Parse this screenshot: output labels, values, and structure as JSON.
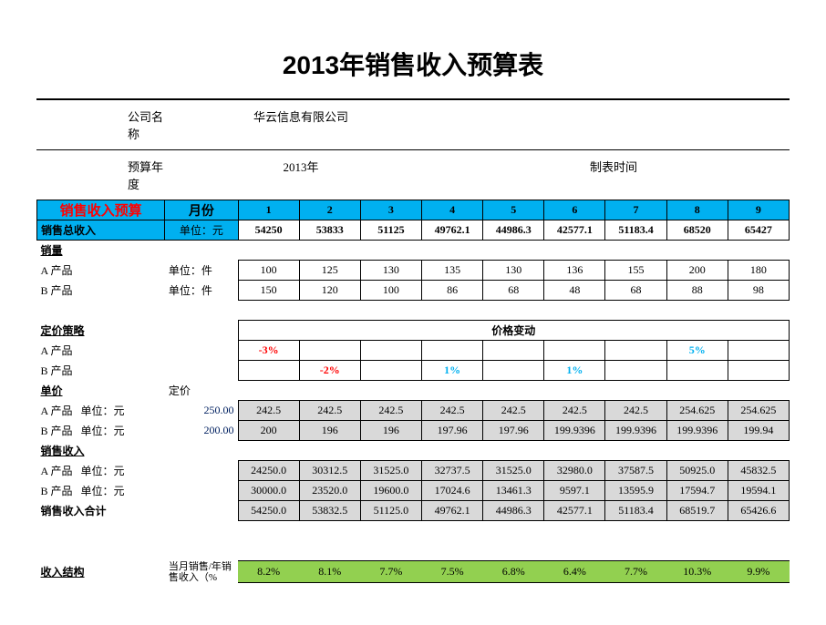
{
  "title": "2013年销售收入预算表",
  "info": {
    "company_label": "公司名称",
    "company_value": "华云信息有限公司",
    "budget_year_label": "预算年度",
    "budget_year_value": "2013年",
    "report_time_label": "制表时间"
  },
  "header": {
    "sales_budget": "销售收入预算",
    "month": "月份",
    "months": [
      "1",
      "2",
      "3",
      "4",
      "5",
      "6",
      "7",
      "8",
      "9"
    ],
    "total_label": "销售总收入",
    "unit_label": "单位：元",
    "totals": [
      "54250",
      "53833",
      "51125",
      "49762.1",
      "44986.3",
      "42577.1",
      "51183.4",
      "68520",
      "65427"
    ]
  },
  "volume": {
    "section": "销量",
    "product_a": "A 产品",
    "product_b": "B 产品",
    "unit_piece": "单位：件",
    "a_values": [
      "100",
      "125",
      "130",
      "135",
      "130",
      "136",
      "155",
      "200",
      "180"
    ],
    "b_values": [
      "150",
      "120",
      "100",
      "86",
      "68",
      "48",
      "68",
      "88",
      "98"
    ]
  },
  "pricing": {
    "section": "定价策略",
    "change_title": "价格变动",
    "product_a": "A 产品",
    "product_b": "B 产品",
    "a_changes": [
      "-3%",
      "",
      "",
      "",
      "",
      "",
      "",
      "5%",
      ""
    ],
    "b_changes": [
      "",
      "-2%",
      "",
      "1%",
      "",
      "1%",
      "",
      "",
      ""
    ]
  },
  "unit_price": {
    "section": "单价",
    "base_label": "定价",
    "product_a": "A 产品",
    "product_b": "B 产品",
    "unit_yuan": "单位：元",
    "a_base": "250.00",
    "b_base": "200.00",
    "a_values": [
      "242.5",
      "242.5",
      "242.5",
      "242.5",
      "242.5",
      "242.5",
      "242.5",
      "254.625",
      "254.625"
    ],
    "b_values": [
      "200",
      "196",
      "196",
      "197.96",
      "197.96",
      "199.9396",
      "199.9396",
      "199.9396",
      "199.94"
    ]
  },
  "revenue": {
    "section": "销售收入",
    "product_a": "A 产品",
    "product_b": "B 产品",
    "unit_yuan": "单位：元",
    "total_label": "销售收入合计",
    "a_values": [
      "24250.0",
      "30312.5",
      "31525.0",
      "32737.5",
      "31525.0",
      "32980.0",
      "37587.5",
      "50925.0",
      "45832.5"
    ],
    "b_values": [
      "30000.0",
      "23520.0",
      "19600.0",
      "17024.6",
      "13461.3",
      "9597.1",
      "13595.9",
      "17594.7",
      "19594.1"
    ],
    "totals": [
      "54250.0",
      "53832.5",
      "51125.0",
      "49762.1",
      "44986.3",
      "42577.1",
      "51183.4",
      "68519.7",
      "65426.6"
    ]
  },
  "structure": {
    "section": "收入结构",
    "sub_label": "当月销售/年销售收入（%",
    "values": [
      "8.2%",
      "8.1%",
      "7.7%",
      "7.5%",
      "6.8%",
      "6.4%",
      "7.7%",
      "10.3%",
      "9.9%"
    ]
  },
  "colors": {
    "blue_bg": "#00b0f0",
    "gray_bg": "#d9d9d9",
    "green_bg": "#92d050",
    "red_text": "#ff0000",
    "blue_text": "#0070c0",
    "cyan_text": "#00b0f0",
    "navy_text": "#002060"
  }
}
